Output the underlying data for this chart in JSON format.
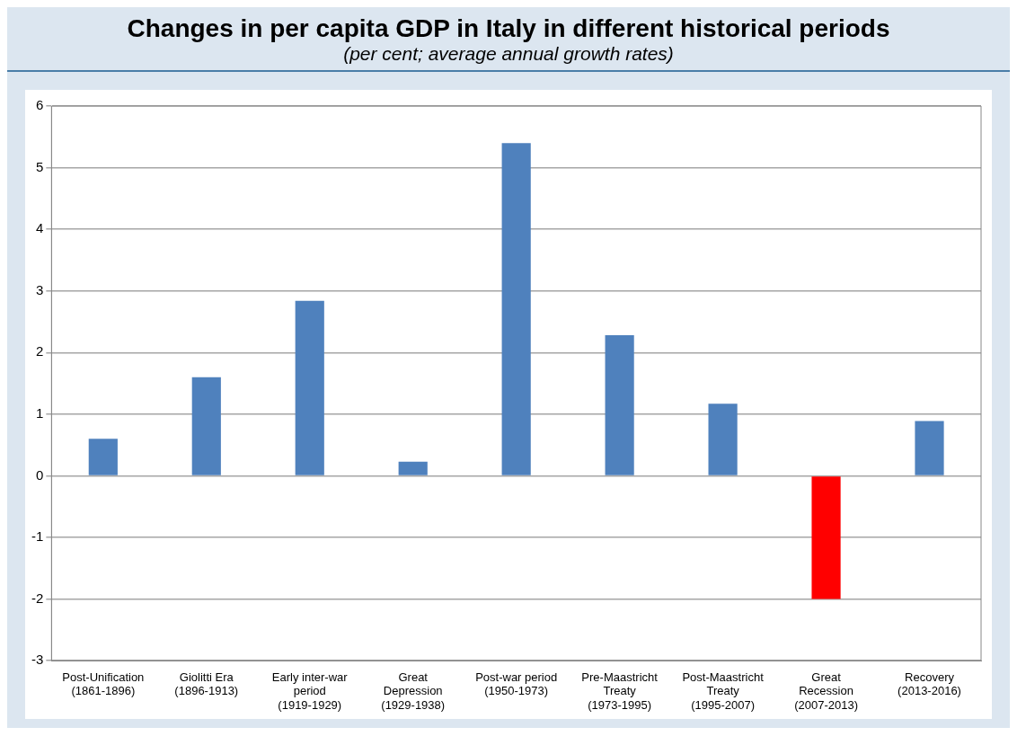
{
  "chart_data": {
    "type": "bar",
    "title": "Changes in per capita GDP in Italy in different historical periods",
    "subtitle": "(per cent; average annual growth rates)",
    "categories": [
      "Post-Unification\n(1861-1896)",
      "Giolitti Era\n(1896-1913)",
      "Early inter-war\nperiod\n(1919-1929)",
      "Great\nDepression\n(1929-1938)",
      "Post-war period\n(1950-1973)",
      "Pre-Maastricht\nTreaty\n(1973-1995)",
      "Post-Maastricht\nTreaty\n(1995-2007)",
      "Great\nRecession\n(2007-2013)",
      "Recovery\n(2013-2016)"
    ],
    "values": [
      0.6,
      1.6,
      2.84,
      0.23,
      5.4,
      2.28,
      1.17,
      -2.0,
      0.89
    ],
    "colors": [
      "#4f81bd",
      "#4f81bd",
      "#4f81bd",
      "#4f81bd",
      "#4f81bd",
      "#4f81bd",
      "#4f81bd",
      "#ff0000",
      "#4f81bd"
    ],
    "ylim": [
      -3,
      6
    ],
    "yticks": [
      -3,
      -2,
      -1,
      0,
      1,
      2,
      3,
      4,
      5,
      6
    ],
    "grid": "y",
    "legend": false
  }
}
